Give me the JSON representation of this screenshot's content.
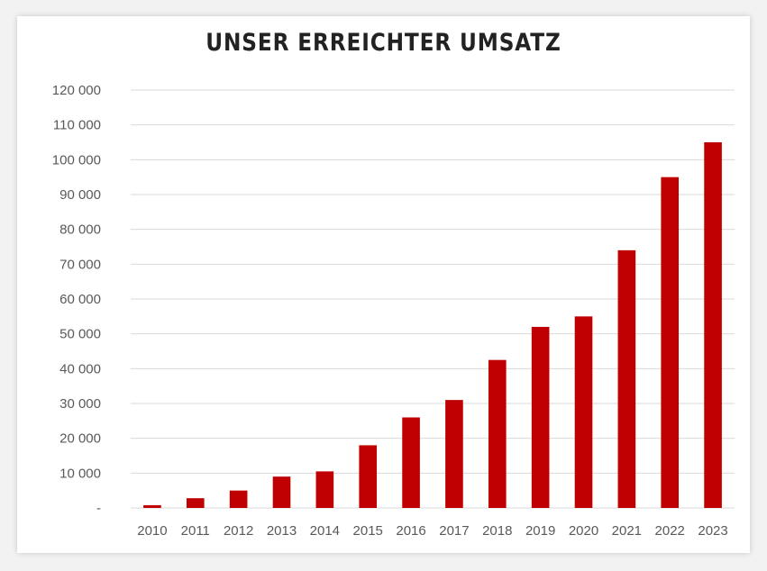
{
  "chart_data": {
    "type": "bar",
    "title": "UNSER ERREICHTER UMSATZ",
    "xlabel": "",
    "ylabel": "",
    "ylim": [
      0,
      120000
    ],
    "yticks": [
      0,
      10000,
      20000,
      30000,
      40000,
      50000,
      60000,
      70000,
      80000,
      90000,
      100000,
      110000,
      120000
    ],
    "ytick_labels": [
      "-",
      "10 000",
      "20 000",
      "30 000",
      "40 000",
      "50 000",
      "60 000",
      "70 000",
      "80 000",
      "90 000",
      "100 000",
      "110 000",
      "120 000"
    ],
    "categories": [
      "2010",
      "2011",
      "2012",
      "2013",
      "2014",
      "2015",
      "2016",
      "2017",
      "2018",
      "2019",
      "2020",
      "2021",
      "2022",
      "2023"
    ],
    "values": [
      800,
      2800,
      5000,
      9000,
      10500,
      18000,
      26000,
      31000,
      42500,
      52000,
      55000,
      74000,
      95000,
      105000
    ],
    "grid": true,
    "bar_color": "#c00000",
    "grid_color": "#d9d9d9"
  }
}
